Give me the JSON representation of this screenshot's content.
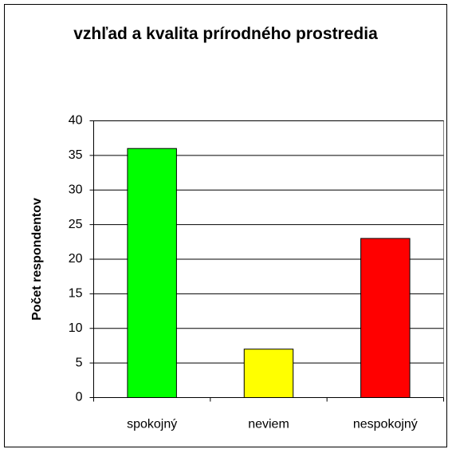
{
  "chart_data": {
    "type": "bar",
    "title": "vzhľad a kvalita prírodného prostredia",
    "y_label": "Počet respondentov",
    "categories": [
      "spokojný",
      "neviem",
      "nespokojný"
    ],
    "series": [
      {
        "name": null,
        "colors": [
          "#00ff00",
          "#ffff00",
          "#ff0000"
        ],
        "values": [
          36,
          7,
          23
        ]
      }
    ],
    "ylim": [
      0,
      40
    ],
    "yticks": [
      0,
      5,
      10,
      15,
      20,
      25,
      30,
      35,
      40
    ],
    "grid": true
  }
}
